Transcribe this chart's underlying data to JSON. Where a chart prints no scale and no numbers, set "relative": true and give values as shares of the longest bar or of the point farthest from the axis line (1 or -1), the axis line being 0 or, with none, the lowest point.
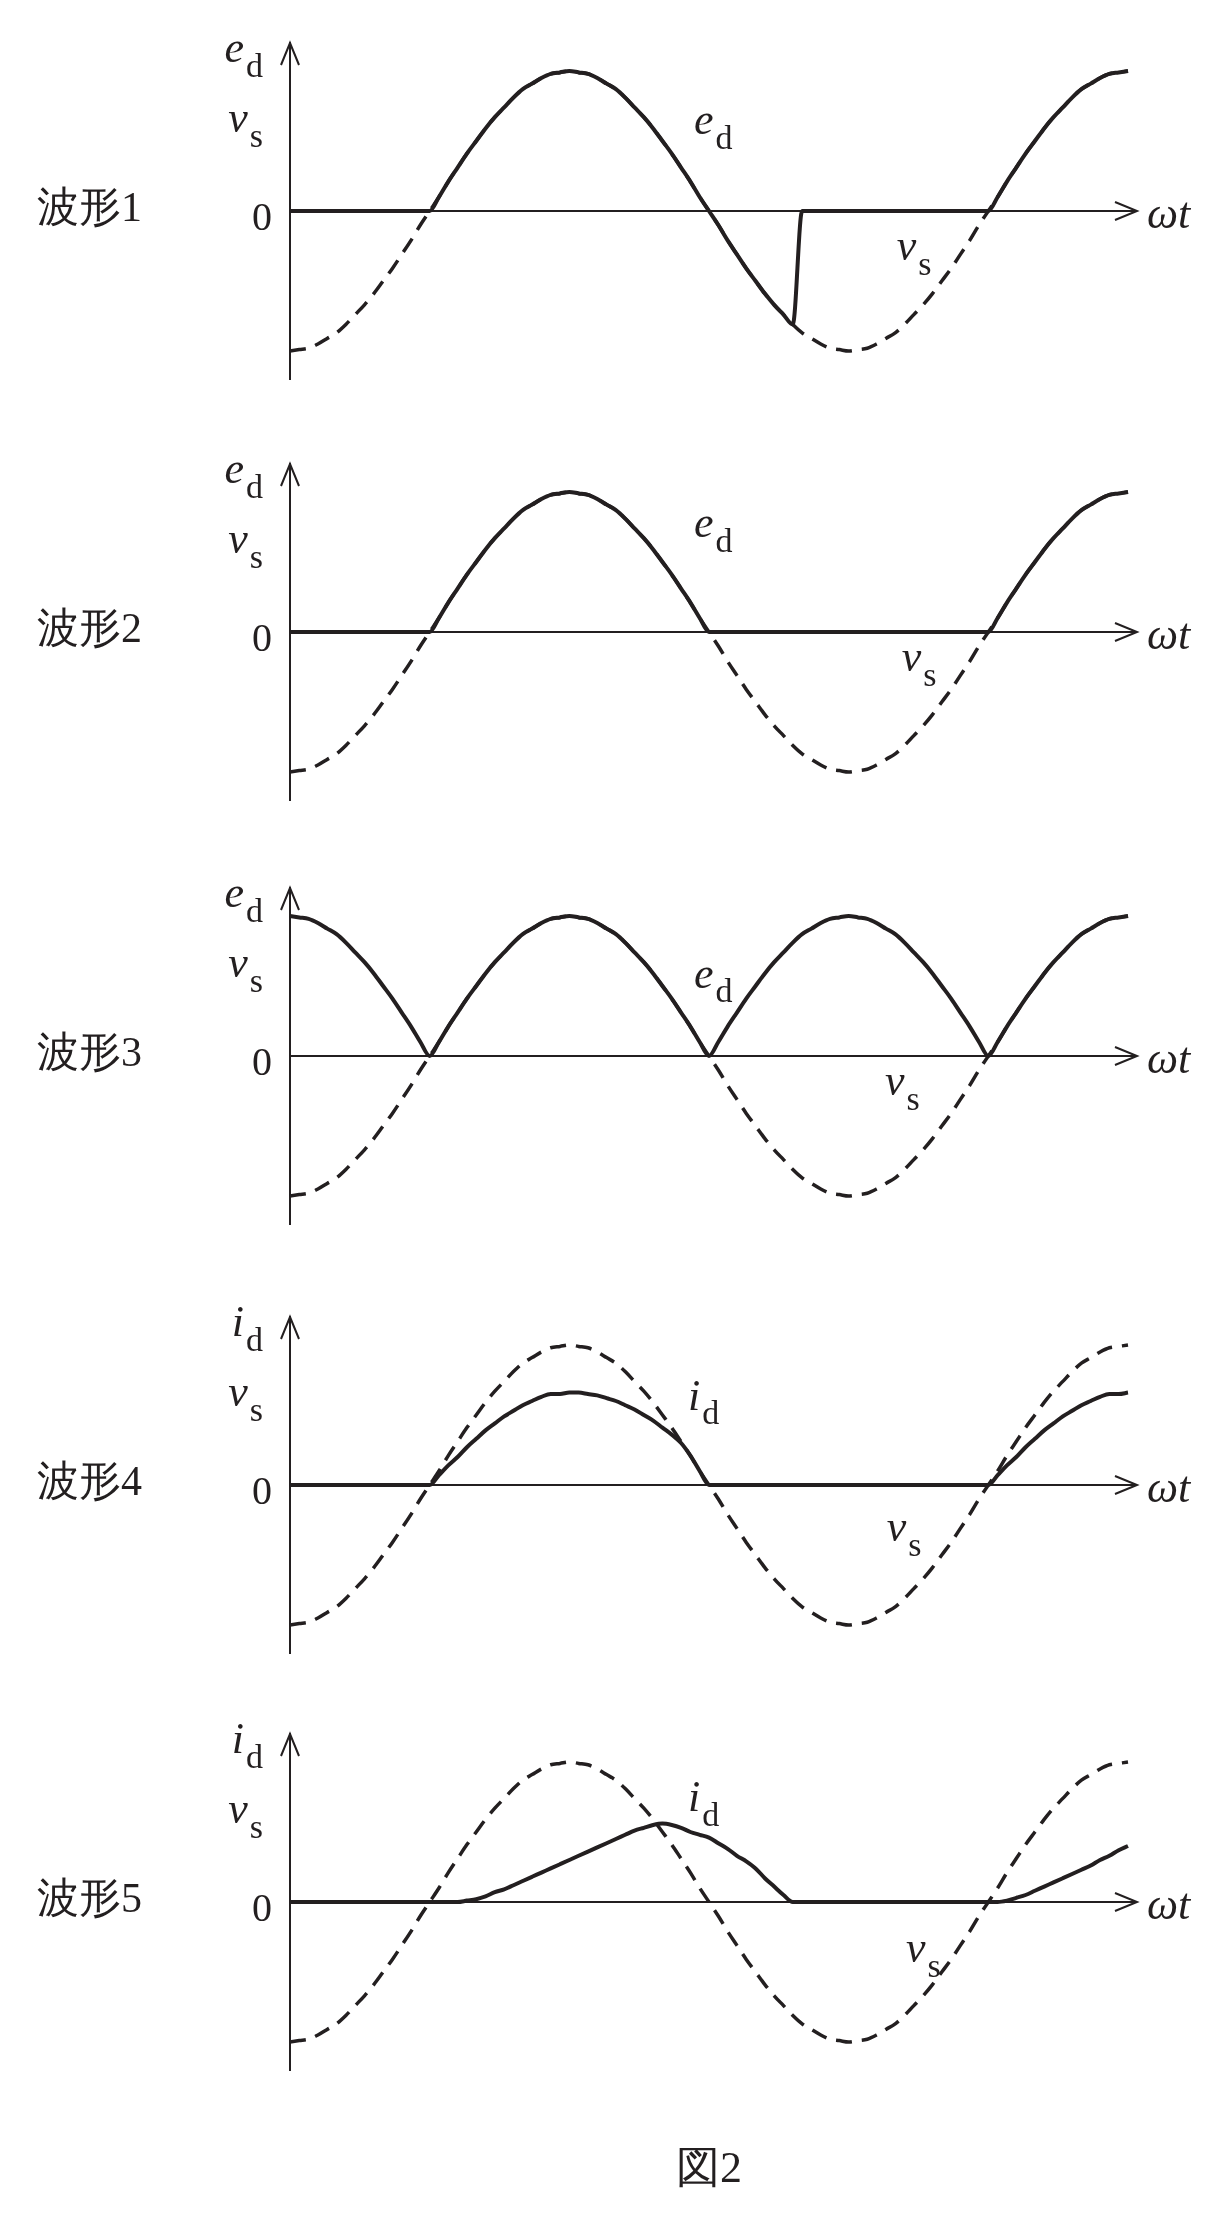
{
  "chart_data": [
    {
      "type": "line",
      "title": "波形1",
      "xlabel": "ωt",
      "ylabel": "e$_{d}$\nv$_{s}$",
      "relative": true,
      "annotations": [
        "0"
      ],
      "categories": [
        null,
        null,
        null,
        null,
        null,
        null,
        null,
        null,
        null,
        null,
        null,
        null,
        null,
        null,
        null,
        null,
        null,
        null,
        null,
        null,
        null,
        null,
        null,
        null,
        null,
        null,
        null,
        null,
        null,
        null,
        null,
        null,
        null,
        null,
        null,
        null,
        null,
        null,
        null,
        null,
        null,
        null,
        null,
        null,
        null,
        null,
        null,
        null,
        null,
        null,
        null,
        null,
        null,
        null,
        null,
        null,
        null,
        null,
        null,
        null,
        null,
        null,
        null,
        null,
        null,
        null,
        null,
        null,
        null,
        null,
        null,
        null,
        null,
        null,
        null,
        null,
        null,
        null,
        null,
        null,
        null,
        null,
        null,
        null,
        null,
        null,
        null,
        null,
        null,
        null,
        null
      ],
      "series": [
        {
          "name": "e$_{d}$",
          "color": "#231f20",
          "line_style": "solid",
          "values": [
            0,
            0,
            0,
            0,
            0,
            0,
            0,
            0,
            0,
            0,
            0,
            0,
            0,
            0,
            0,
            0,
            0.1,
            0.21,
            0.31,
            0.41,
            0.5,
            0.59,
            0.67,
            0.74,
            0.81,
            0.87,
            0.91,
            0.95,
            0.98,
            0.99,
            1,
            0.99,
            0.98,
            0.95,
            0.91,
            0.87,
            0.81,
            0.74,
            0.67,
            0.59,
            0.5,
            0.41,
            0.31,
            0.21,
            0.1,
            0,
            -0.1,
            -0.21,
            -0.31,
            -0.41,
            -0.5,
            -0.59,
            -0.67,
            -0.74,
            -0.81,
            0,
            0,
            0,
            0,
            0,
            0,
            0,
            0,
            0,
            0,
            0,
            0,
            0,
            0,
            0,
            0,
            0,
            0,
            0,
            0,
            0,
            0.1,
            0.21,
            0.31,
            0.41,
            0.5,
            0.59,
            0.67,
            0.74,
            0.81,
            0.87,
            0.91,
            0.95,
            0.98,
            0.99,
            1
          ]
        },
        {
          "name": "v$_{s}$",
          "color": "#231f20",
          "line_style": "dashed",
          "values": [
            -1,
            -0.99,
            -0.98,
            -0.95,
            -0.91,
            -0.87,
            -0.81,
            -0.74,
            -0.67,
            -0.59,
            -0.5,
            -0.41,
            -0.31,
            -0.21,
            -0.1,
            0,
            0.1,
            0.21,
            0.31,
            0.41,
            0.5,
            0.59,
            0.67,
            0.74,
            0.81,
            0.87,
            0.91,
            0.95,
            0.98,
            0.99,
            1,
            0.99,
            0.98,
            0.95,
            0.91,
            0.87,
            0.81,
            0.74,
            0.67,
            0.59,
            0.5,
            0.41,
            0.31,
            0.21,
            0.1,
            0,
            -0.1,
            -0.21,
            -0.31,
            -0.41,
            -0.5,
            -0.59,
            -0.67,
            -0.74,
            -0.81,
            -0.87,
            -0.91,
            -0.95,
            -0.98,
            -0.99,
            -1,
            -0.99,
            -0.98,
            -0.95,
            -0.91,
            -0.87,
            -0.81,
            -0.74,
            -0.67,
            -0.59,
            -0.5,
            -0.41,
            -0.31,
            -0.21,
            -0.1,
            0,
            0.1,
            0.21,
            0.31,
            0.41,
            0.5,
            0.59,
            0.67,
            0.74,
            0.81,
            0.87,
            0.91,
            0.95,
            0.98,
            0.99,
            1
          ]
        }
      ]
    },
    {
      "type": "line",
      "title": "波形2",
      "xlabel": "ωt",
      "ylabel": "e$_{d}$\nv$_{s}$",
      "relative": true,
      "annotations": [
        "0"
      ],
      "categories": [
        null,
        null,
        null,
        null,
        null,
        null,
        null,
        null,
        null,
        null,
        null,
        null,
        null,
        null,
        null,
        null,
        null,
        null,
        null,
        null,
        null,
        null,
        null,
        null,
        null,
        null,
        null,
        null,
        null,
        null,
        null,
        null,
        null,
        null,
        null,
        null,
        null,
        null,
        null,
        null,
        null,
        null,
        null,
        null,
        null,
        null,
        null,
        null,
        null,
        null,
        null,
        null,
        null,
        null,
        null,
        null,
        null,
        null,
        null,
        null,
        null,
        null,
        null,
        null,
        null,
        null,
        null,
        null,
        null,
        null,
        null,
        null,
        null,
        null,
        null,
        null,
        null,
        null,
        null,
        null,
        null,
        null,
        null,
        null,
        null,
        null,
        null,
        null,
        null,
        null,
        null
      ],
      "series": [
        {
          "name": "e$_{d}$",
          "color": "#231f20",
          "line_style": "solid",
          "values": [
            0,
            0,
            0,
            0,
            0,
            0,
            0,
            0,
            0,
            0,
            0,
            0,
            0,
            0,
            0,
            0,
            0.1,
            0.21,
            0.31,
            0.41,
            0.5,
            0.59,
            0.67,
            0.74,
            0.81,
            0.87,
            0.91,
            0.95,
            0.98,
            0.99,
            1,
            0.99,
            0.98,
            0.95,
            0.91,
            0.87,
            0.81,
            0.74,
            0.67,
            0.59,
            0.5,
            0.41,
            0.31,
            0.21,
            0.1,
            0,
            0,
            0,
            0,
            0,
            0,
            0,
            0,
            0,
            0,
            0,
            0,
            0,
            0,
            0,
            0,
            0,
            0,
            0,
            0,
            0,
            0,
            0,
            0,
            0,
            0,
            0,
            0,
            0,
            0,
            0,
            0.1,
            0.21,
            0.31,
            0.41,
            0.5,
            0.59,
            0.67,
            0.74,
            0.81,
            0.87,
            0.91,
            0.95,
            0.98,
            0.99,
            1
          ]
        },
        {
          "name": "v$_{s}$",
          "color": "#231f20",
          "line_style": "dashed",
          "values": [
            -1,
            -0.99,
            -0.98,
            -0.95,
            -0.91,
            -0.87,
            -0.81,
            -0.74,
            -0.67,
            -0.59,
            -0.5,
            -0.41,
            -0.31,
            -0.21,
            -0.1,
            0,
            0.1,
            0.21,
            0.31,
            0.41,
            0.5,
            0.59,
            0.67,
            0.74,
            0.81,
            0.87,
            0.91,
            0.95,
            0.98,
            0.99,
            1,
            0.99,
            0.98,
            0.95,
            0.91,
            0.87,
            0.81,
            0.74,
            0.67,
            0.59,
            0.5,
            0.41,
            0.31,
            0.21,
            0.1,
            0,
            -0.1,
            -0.21,
            -0.31,
            -0.41,
            -0.5,
            -0.59,
            -0.67,
            -0.74,
            -0.81,
            -0.87,
            -0.91,
            -0.95,
            -0.98,
            -0.99,
            -1,
            -0.99,
            -0.98,
            -0.95,
            -0.91,
            -0.87,
            -0.81,
            -0.74,
            -0.67,
            -0.59,
            -0.5,
            -0.41,
            -0.31,
            -0.21,
            -0.1,
            0,
            0.1,
            0.21,
            0.31,
            0.41,
            0.5,
            0.59,
            0.67,
            0.74,
            0.81,
            0.87,
            0.91,
            0.95,
            0.98,
            0.99,
            1
          ]
        }
      ]
    },
    {
      "type": "line",
      "title": "波形3",
      "xlabel": "ωt",
      "ylabel": "e$_{d}$\nv$_{s}$",
      "relative": true,
      "annotations": [
        "0"
      ],
      "categories": [
        null,
        null,
        null,
        null,
        null,
        null,
        null,
        null,
        null,
        null,
        null,
        null,
        null,
        null,
        null,
        null,
        null,
        null,
        null,
        null,
        null,
        null,
        null,
        null,
        null,
        null,
        null,
        null,
        null,
        null,
        null,
        null,
        null,
        null,
        null,
        null,
        null,
        null,
        null,
        null,
        null,
        null,
        null,
        null,
        null,
        null,
        null,
        null,
        null,
        null,
        null,
        null,
        null,
        null,
        null,
        null,
        null,
        null,
        null,
        null,
        null,
        null,
        null,
        null,
        null,
        null,
        null,
        null,
        null,
        null,
        null,
        null,
        null,
        null,
        null,
        null,
        null,
        null,
        null,
        null,
        null,
        null,
        null,
        null,
        null,
        null,
        null,
        null,
        null,
        null,
        null
      ],
      "series": [
        {
          "name": "e$_{d}$",
          "color": "#231f20",
          "line_style": "solid",
          "values": [
            1,
            0.99,
            0.98,
            0.95,
            0.91,
            0.87,
            0.81,
            0.74,
            0.67,
            0.59,
            0.5,
            0.41,
            0.31,
            0.21,
            0.1,
            0,
            0.1,
            0.21,
            0.31,
            0.41,
            0.5,
            0.59,
            0.67,
            0.74,
            0.81,
            0.87,
            0.91,
            0.95,
            0.98,
            0.99,
            1,
            0.99,
            0.98,
            0.95,
            0.91,
            0.87,
            0.81,
            0.74,
            0.67,
            0.59,
            0.5,
            0.41,
            0.31,
            0.21,
            0.1,
            0,
            0.1,
            0.21,
            0.31,
            0.41,
            0.5,
            0.59,
            0.67,
            0.74,
            0.81,
            0.87,
            0.91,
            0.95,
            0.98,
            0.99,
            1,
            0.99,
            0.98,
            0.95,
            0.91,
            0.87,
            0.81,
            0.74,
            0.67,
            0.59,
            0.5,
            0.41,
            0.31,
            0.21,
            0.1,
            0,
            0.1,
            0.21,
            0.31,
            0.41,
            0.5,
            0.59,
            0.67,
            0.74,
            0.81,
            0.87,
            0.91,
            0.95,
            0.98,
            0.99,
            1
          ]
        },
        {
          "name": "v$_{s}$",
          "color": "#231f20",
          "line_style": "dashed",
          "values": [
            -1,
            -0.99,
            -0.98,
            -0.95,
            -0.91,
            -0.87,
            -0.81,
            -0.74,
            -0.67,
            -0.59,
            -0.5,
            -0.41,
            -0.31,
            -0.21,
            -0.1,
            0,
            0.1,
            0.21,
            0.31,
            0.41,
            0.5,
            0.59,
            0.67,
            0.74,
            0.81,
            0.87,
            0.91,
            0.95,
            0.98,
            0.99,
            1,
            0.99,
            0.98,
            0.95,
            0.91,
            0.87,
            0.81,
            0.74,
            0.67,
            0.59,
            0.5,
            0.41,
            0.31,
            0.21,
            0.1,
            0,
            -0.1,
            -0.21,
            -0.31,
            -0.41,
            -0.5,
            -0.59,
            -0.67,
            -0.74,
            -0.81,
            -0.87,
            -0.91,
            -0.95,
            -0.98,
            -0.99,
            -1,
            -0.99,
            -0.98,
            -0.95,
            -0.91,
            -0.87,
            -0.81,
            -0.74,
            -0.67,
            -0.59,
            -0.5,
            -0.41,
            -0.31,
            -0.21,
            -0.1,
            0,
            0.1,
            0.21,
            0.31,
            0.41,
            0.5,
            0.59,
            0.67,
            0.74,
            0.81,
            0.87,
            0.91,
            0.95,
            0.98,
            0.99,
            1
          ]
        }
      ]
    },
    {
      "type": "line",
      "title": "波形4",
      "xlabel": "ωt",
      "ylabel": "i$_{d}$\nv$_{s}$",
      "relative": true,
      "annotations": [
        "0"
      ],
      "categories": [
        null,
        null,
        null,
        null,
        null,
        null,
        null,
        null,
        null,
        null,
        null,
        null,
        null,
        null,
        null,
        null,
        null,
        null,
        null,
        null,
        null,
        null,
        null,
        null,
        null,
        null,
        null,
        null,
        null,
        null,
        null,
        null,
        null,
        null,
        null,
        null,
        null,
        null,
        null,
        null,
        null,
        null,
        null,
        null,
        null,
        null,
        null,
        null,
        null,
        null,
        null,
        null,
        null,
        null,
        null,
        null,
        null,
        null,
        null,
        null,
        null,
        null,
        null,
        null,
        null,
        null,
        null,
        null,
        null,
        null,
        null,
        null,
        null,
        null,
        null,
        null,
        null,
        null,
        null,
        null,
        null,
        null,
        null,
        null,
        null,
        null,
        null,
        null,
        null,
        null,
        null
      ],
      "series": [
        {
          "name": "i$_{d}$",
          "color": "#231f20",
          "line_style": "solid",
          "values": [
            0,
            0,
            0,
            0,
            0,
            0,
            0,
            0,
            0,
            0,
            0,
            0,
            0,
            0,
            0,
            0,
            0.07,
            0.14,
            0.2,
            0.27,
            0.33,
            0.39,
            0.44,
            0.49,
            0.53,
            0.57,
            0.6,
            0.63,
            0.65,
            0.65,
            0.66,
            0.66,
            0.65,
            0.64,
            0.62,
            0.6,
            0.57,
            0.54,
            0.5,
            0.46,
            0.41,
            0.36,
            0.3,
            0.21,
            0.1,
            0,
            0,
            0,
            0,
            0,
            0,
            0,
            0,
            0,
            0,
            0,
            0,
            0,
            0,
            0,
            0,
            0,
            0,
            0,
            0,
            0,
            0,
            0,
            0,
            0,
            0,
            0,
            0,
            0,
            0,
            0,
            0.07,
            0.14,
            0.2,
            0.27,
            0.33,
            0.39,
            0.44,
            0.49,
            0.53,
            0.57,
            0.6,
            0.63,
            0.65,
            0.65,
            0.66
          ]
        },
        {
          "name": "v$_{s}$",
          "color": "#231f20",
          "line_style": "dashed",
          "values": [
            -1,
            -0.99,
            -0.98,
            -0.95,
            -0.91,
            -0.87,
            -0.81,
            -0.74,
            -0.67,
            -0.59,
            -0.5,
            -0.41,
            -0.31,
            -0.21,
            -0.1,
            0,
            0.1,
            0.21,
            0.31,
            0.41,
            0.5,
            0.59,
            0.67,
            0.74,
            0.81,
            0.87,
            0.91,
            0.95,
            0.98,
            0.99,
            1,
            0.99,
            0.98,
            0.95,
            0.91,
            0.87,
            0.81,
            0.74,
            0.67,
            0.59,
            0.5,
            0.41,
            0.31,
            0.21,
            0.1,
            0,
            -0.1,
            -0.21,
            -0.31,
            -0.41,
            -0.5,
            -0.59,
            -0.67,
            -0.74,
            -0.81,
            -0.87,
            -0.91,
            -0.95,
            -0.98,
            -0.99,
            -1,
            -0.99,
            -0.98,
            -0.95,
            -0.91,
            -0.87,
            -0.81,
            -0.74,
            -0.67,
            -0.59,
            -0.5,
            -0.41,
            -0.31,
            -0.21,
            -0.1,
            0,
            0.1,
            0.21,
            0.31,
            0.41,
            0.5,
            0.59,
            0.67,
            0.74,
            0.81,
            0.87,
            0.91,
            0.95,
            0.98,
            0.99,
            1
          ]
        }
      ]
    },
    {
      "type": "line",
      "title": "波形5",
      "xlabel": "ωt",
      "ylabel": "i$_{d}$\nv$_{s}$",
      "relative": true,
      "annotations": [
        "0",
        "図2"
      ],
      "categories": [
        null,
        null,
        null,
        null,
        null,
        null,
        null,
        null,
        null,
        null,
        null,
        null,
        null,
        null,
        null,
        null,
        null,
        null,
        null,
        null,
        null,
        null,
        null,
        null,
        null,
        null,
        null,
        null,
        null,
        null,
        null,
        null,
        null,
        null,
        null,
        null,
        null,
        null,
        null,
        null,
        null,
        null,
        null,
        null,
        null,
        null,
        null,
        null,
        null,
        null,
        null,
        null,
        null,
        null,
        null,
        null,
        null,
        null,
        null,
        null,
        null,
        null,
        null,
        null,
        null,
        null,
        null,
        null,
        null,
        null,
        null,
        null,
        null,
        null,
        null,
        null,
        null,
        null,
        null,
        null,
        null,
        null,
        null,
        null,
        null,
        null,
        null,
        null,
        null,
        null,
        null
      ],
      "series": [
        {
          "name": "i$_{d}$",
          "color": "#231f20",
          "line_style": "solid",
          "values": [
            0,
            0,
            0,
            0,
            0,
            0,
            0,
            0,
            0,
            0,
            0,
            0,
            0,
            0,
            0,
            0,
            0,
            0,
            0,
            0.01,
            0.02,
            0.04,
            0.07,
            0.09,
            0.12,
            0.15,
            0.18,
            0.21,
            0.24,
            0.27,
            0.3,
            0.33,
            0.36,
            0.39,
            0.42,
            0.45,
            0.48,
            0.51,
            0.53,
            0.55,
            0.56,
            0.55,
            0.53,
            0.5,
            0.48,
            0.46,
            0.42,
            0.38,
            0.33,
            0.29,
            0.24,
            0.17,
            0.11,
            0.05,
            0,
            0,
            0,
            0,
            0,
            0,
            0,
            0,
            0,
            0,
            0,
            0,
            0,
            0,
            0,
            0,
            0,
            0,
            0,
            0,
            0,
            0,
            0,
            0.01,
            0.03,
            0.05,
            0.08,
            0.11,
            0.14,
            0.17,
            0.2,
            0.23,
            0.26,
            0.3,
            0.33,
            0.37,
            0.4
          ]
        },
        {
          "name": "v$_{s}$",
          "color": "#231f20",
          "line_style": "dashed",
          "values": [
            -1,
            -0.99,
            -0.98,
            -0.95,
            -0.91,
            -0.87,
            -0.81,
            -0.74,
            -0.67,
            -0.59,
            -0.5,
            -0.41,
            -0.31,
            -0.21,
            -0.1,
            0,
            0.1,
            0.21,
            0.31,
            0.41,
            0.5,
            0.59,
            0.67,
            0.74,
            0.81,
            0.87,
            0.91,
            0.95,
            0.98,
            0.99,
            1,
            0.99,
            0.98,
            0.95,
            0.91,
            0.87,
            0.81,
            0.74,
            0.67,
            0.59,
            0.5,
            0.41,
            0.31,
            0.21,
            0.1,
            0,
            -0.1,
            -0.21,
            -0.31,
            -0.41,
            -0.5,
            -0.59,
            -0.67,
            -0.74,
            -0.81,
            -0.87,
            -0.91,
            -0.95,
            -0.98,
            -0.99,
            -1,
            -0.99,
            -0.98,
            -0.95,
            -0.91,
            -0.87,
            -0.81,
            -0.74,
            -0.67,
            -0.59,
            -0.5,
            -0.41,
            -0.31,
            -0.21,
            -0.1,
            0,
            0.1,
            0.21,
            0.31,
            0.41,
            0.5,
            0.59,
            0.67,
            0.74,
            0.81,
            0.87,
            0.91,
            0.95,
            0.98,
            0.99,
            1
          ]
        }
      ]
    }
  ]
}
